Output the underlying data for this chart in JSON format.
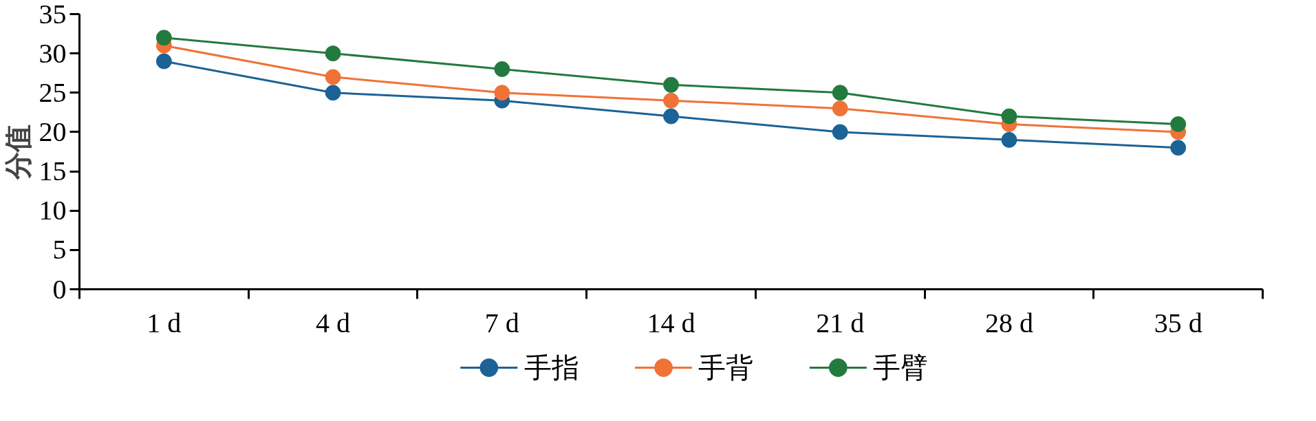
{
  "chart_data": {
    "type": "line",
    "ylabel": "分值",
    "categories": [
      "1 d",
      "4 d",
      "7 d",
      "14 d",
      "21 d",
      "28 d",
      "35 d"
    ],
    "series": [
      {
        "name": "手指",
        "color": "#1b6396",
        "values": [
          29,
          25,
          24,
          22,
          20,
          19,
          18
        ]
      },
      {
        "name": "手背",
        "color": "#f07236",
        "values": [
          31,
          27,
          25,
          24,
          23,
          21,
          20
        ]
      },
      {
        "name": "手臂",
        "color": "#237a3e",
        "values": [
          32,
          30,
          28,
          26,
          25,
          22,
          21
        ]
      }
    ],
    "ylim": [
      0,
      35
    ],
    "yticks": [
      0,
      5,
      10,
      15,
      20,
      25,
      30,
      35
    ],
    "grid": false,
    "legend": "bottom",
    "marker": "circle",
    "line_style": "solid"
  }
}
